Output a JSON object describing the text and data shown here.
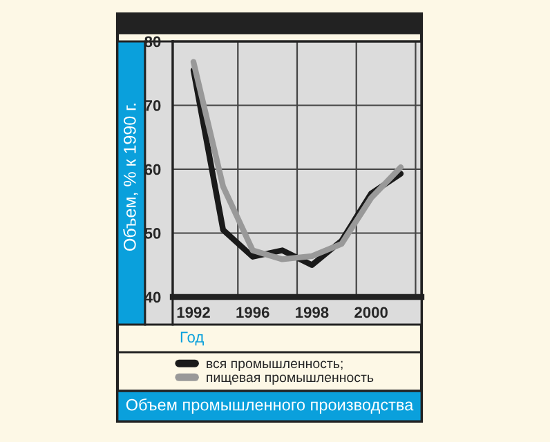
{
  "chart_data": {
    "type": "line",
    "title": "Объем промышленного производства",
    "xlabel": "Год",
    "ylabel": "Объем, % к 1990 г.",
    "categories": [
      "1992",
      null,
      "1996",
      null,
      "1998",
      null,
      "2000",
      null
    ],
    "series": [
      {
        "name": "вся промышленность;",
        "color": "#1a1a1a",
        "values": [
          75.5,
          50.5,
          46.3,
          47.3,
          45.0,
          48.8,
          56.2,
          59.3
        ]
      },
      {
        "name": "пищевая промышленность",
        "color": "#999999",
        "values": [
          76.8,
          57.3,
          47.3,
          45.9,
          46.4,
          48.3,
          55.5,
          60.3
        ]
      }
    ],
    "ylim": [
      40,
      80
    ],
    "yticks": [
      40,
      50,
      60,
      70,
      80
    ],
    "grid": true,
    "legend": "bottom",
    "marker": "none",
    "line_style": "solid"
  }
}
